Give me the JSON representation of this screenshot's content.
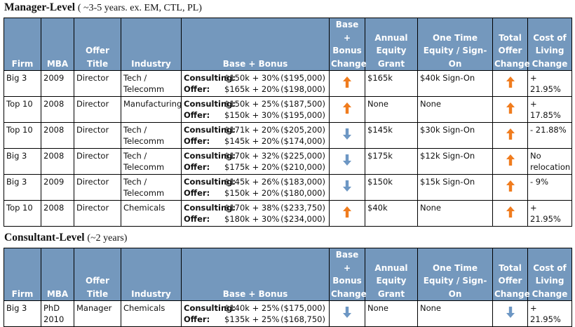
{
  "columns": [
    "Firm",
    "MBA",
    "Offer Title",
    "Industry",
    "Base + Bonus",
    "Base + Bonus Change",
    "Annual Equity Grant",
    "One Time Equity / Sign-On",
    "Total Offer Change",
    "Cost of Living Change"
  ],
  "colors": {
    "header_bg": "#7498bd",
    "arrow_up": "#f07c1e",
    "arrow_down": "#6d97c4"
  },
  "manager": {
    "title": "Manager-Level",
    "subtitle": "( ~3-5 years. ex. EM, CTL, PL)",
    "rows": [
      {
        "firm": "Big 3",
        "mba": "2009",
        "title": "Director",
        "industry": "Tech / Telecomm",
        "consulting_label": "Consulting:",
        "consulting_val": "$150k + 30%",
        "consulting_total": "($195,000)",
        "offer_label": "Offer:",
        "offer_val": "$165k + 20%",
        "offer_total": "($198,000)",
        "bb_change": "up-icon",
        "equity": "$165k",
        "signon": "$40k Sign-On",
        "total_change": "up-icon",
        "col": "+ 21.95%"
      },
      {
        "firm": "Top 10",
        "mba": "2008",
        "title": "Director",
        "industry": "Manufacturing",
        "consulting_label": "Consulting:",
        "consulting_val": "$150k + 25%",
        "consulting_total": "($187,500)",
        "offer_label": "Offer:",
        "offer_val": "$150k + 30%",
        "offer_total": "($195,000)",
        "bb_change": "up-icon",
        "equity": "None",
        "signon": "None",
        "total_change": "up-icon",
        "col": "+ 17.85%"
      },
      {
        "firm": "Top 10",
        "mba": "2008",
        "title": "Director",
        "industry": "Tech / Telecomm",
        "consulting_label": "Consulting:",
        "consulting_val": "$171k + 20%",
        "consulting_total": "($205,200)",
        "offer_label": "Offer:",
        "offer_val": "$145k + 20%",
        "offer_total": "($174,000)",
        "bb_change": "down-icon",
        "equity": "$145k",
        "signon": "$30k Sign-On",
        "total_change": "up-icon",
        "col": "- 21.88%"
      },
      {
        "firm": "Big 3",
        "mba": "2008",
        "title": "Director",
        "industry": "Tech / Telecomm",
        "consulting_label": "Consulting:",
        "consulting_val": "$170k + 32%",
        "consulting_total": "($225,000)",
        "offer_label": "Offer:",
        "offer_val": "$175k + 20%",
        "offer_total": "($210,000)",
        "bb_change": "down-icon",
        "equity": "$175k",
        "signon": "$12k Sign-On",
        "total_change": "up-icon",
        "col": "No relocation"
      },
      {
        "firm": "Big 3",
        "mba": "2009",
        "title": "Director",
        "industry": "Tech / Telecomm",
        "consulting_label": "Consulting:",
        "consulting_val": "$145k + 26%",
        "consulting_total": "($183,000)",
        "offer_label": "Offer:",
        "offer_val": "$150k + 20%",
        "offer_total": "($180,000)",
        "bb_change": "down-icon",
        "equity": "$150k",
        "signon": "$15k Sign-On",
        "total_change": "up-icon",
        "col": "- 9%"
      },
      {
        "firm": "Top 10",
        "mba": "2008",
        "title": "Director",
        "industry": "Chemicals",
        "consulting_label": "Consulting:",
        "consulting_val": "$170k + 38%",
        "consulting_total": "($233,750)",
        "offer_label": "Offer:",
        "offer_val": "$180k + 30%",
        "offer_total": "($234,000)",
        "bb_change": "up-icon",
        "equity": "$40k",
        "signon": "None",
        "total_change": "up-icon",
        "col": "+ 21.95%"
      }
    ]
  },
  "consultant": {
    "title": "Consultant-Level",
    "subtitle": "(~2 years)",
    "rows": [
      {
        "firm": "Big 3",
        "mba": "PhD 2010",
        "title": "Manager",
        "industry": "Chemicals",
        "consulting_label": "Consulting:",
        "consulting_val": "$140k + 25%",
        "consulting_total": "($175,000)",
        "offer_label": "Offer:",
        "offer_val": "$135k + 25%",
        "offer_total": "($168,750)",
        "bb_change": "down-icon",
        "equity": "None",
        "signon": "None",
        "total_change": "down-icon",
        "col": "+ 21.95%"
      }
    ]
  }
}
